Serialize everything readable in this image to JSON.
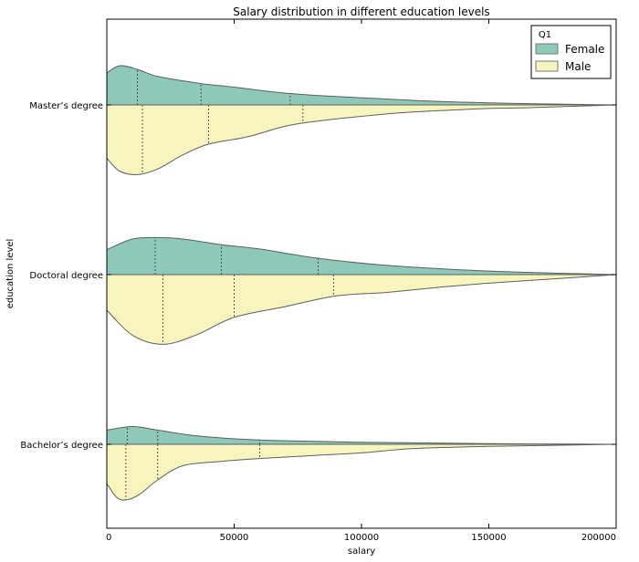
{
  "chart_data": {
    "type": "violin",
    "title": "Salary distribution in different education levels",
    "xlabel": "salary",
    "ylabel": "education level",
    "xlim": [
      0,
      200000
    ],
    "xticks": [
      0,
      50000,
      100000,
      150000,
      200000
    ],
    "xtick_labels": [
      "0",
      "50000",
      "100000",
      "150000",
      "200000"
    ],
    "categories": [
      "Master’s degree",
      "Doctoral degree",
      "Bachelor’s degree"
    ],
    "legend": {
      "title": "Q1",
      "position": "top-right",
      "entries": [
        {
          "label": "Female",
          "color": "#8dc8b8"
        },
        {
          "label": "Male",
          "color": "#f5f5bd"
        }
      ]
    },
    "colors": {
      "female": "#8dc8b8",
      "male": "#f5f5bd",
      "outline": "#5e5e5e"
    },
    "violins": [
      {
        "category": "Master’s degree",
        "female": {
          "salary": [
            0,
            5000,
            12000,
            20000,
            37000,
            50000,
            72000,
            100000,
            130000,
            160000,
            200000
          ],
          "density": [
            0.45,
            0.55,
            0.5,
            0.4,
            0.3,
            0.25,
            0.16,
            0.1,
            0.05,
            0.02,
            0.0
          ],
          "quartiles": [
            12000,
            37000,
            72000
          ]
        },
        "male": {
          "salary": [
            0,
            5000,
            12000,
            20000,
            30000,
            40000,
            55000,
            70000,
            80000,
            100000,
            120000,
            150000,
            165000,
            200000
          ],
          "density": [
            0.75,
            0.93,
            0.98,
            0.9,
            0.7,
            0.55,
            0.45,
            0.3,
            0.24,
            0.16,
            0.1,
            0.05,
            0.04,
            0.0
          ],
          "quartiles": [
            14000,
            40000,
            77000
          ]
        }
      },
      {
        "category": "Doctoral degree",
        "female": {
          "salary": [
            0,
            10000,
            20000,
            30000,
            45000,
            60000,
            83000,
            110000,
            150000,
            200000
          ],
          "density": [
            0.35,
            0.5,
            0.52,
            0.5,
            0.42,
            0.36,
            0.23,
            0.13,
            0.05,
            0.0
          ],
          "quartiles": [
            19000,
            45000,
            83000
          ]
        },
        "male": {
          "salary": [
            0,
            10000,
            22000,
            35000,
            50000,
            70000,
            90000,
            110000,
            130000,
            150000,
            175000,
            200000
          ],
          "density": [
            0.5,
            0.85,
            0.98,
            0.85,
            0.6,
            0.45,
            0.3,
            0.25,
            0.18,
            0.12,
            0.06,
            0.0
          ],
          "quartiles": [
            22000,
            50000,
            89000
          ]
        }
      },
      {
        "category": "Bachelor’s degree",
        "female": {
          "salary": [
            0,
            10000,
            20000,
            35000,
            60000,
            100000,
            150000,
            200000
          ],
          "density": [
            0.2,
            0.25,
            0.2,
            0.12,
            0.06,
            0.03,
            0.01,
            0.0
          ],
          "quartiles": [
            8000,
            20000,
            60000
          ]
        },
        "male": {
          "salary": [
            0,
            4000,
            8000,
            13000,
            20000,
            30000,
            45000,
            60000,
            80000,
            100000,
            120000,
            150000,
            200000
          ],
          "density": [
            0.55,
            0.75,
            0.78,
            0.7,
            0.5,
            0.3,
            0.24,
            0.2,
            0.16,
            0.12,
            0.06,
            0.03,
            0.0
          ],
          "quartiles": [
            7500,
            20000,
            60000
          ]
        }
      }
    ]
  }
}
